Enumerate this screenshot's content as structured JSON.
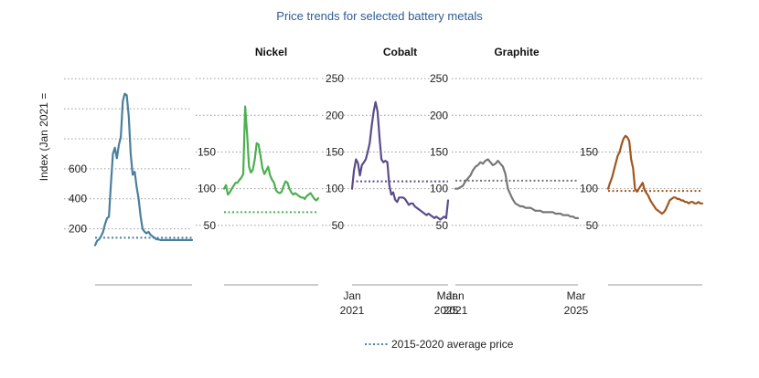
{
  "title": "Price trends for selected battery metals",
  "ylabel": "Index (Jan 2021 =",
  "legend": {
    "label": "2015-2020 average price"
  },
  "chart_data": [
    {
      "type": "line",
      "panel_title": "",
      "color": "#4a7f9e",
      "yticks": [
        200,
        400,
        600,
        800,
        1000,
        1200
      ],
      "ylim": [
        100,
        1250
      ],
      "tick_labels": [
        "200",
        "400",
        "600",
        "",
        "",
        ""
      ],
      "x_labels": [],
      "average_price": 140,
      "series": [
        {
          "x": [
            0,
            1,
            2,
            3,
            4,
            5,
            6,
            7,
            8,
            9,
            10,
            11,
            12,
            13,
            14,
            15,
            16,
            17,
            18,
            19,
            20,
            21,
            22,
            23,
            24,
            25,
            26,
            27,
            28,
            29,
            30,
            31,
            32,
            33,
            34,
            35,
            36,
            37,
            38,
            39,
            40,
            41,
            42,
            43,
            44,
            45,
            46,
            47,
            48,
            49
          ],
          "values": [
            90,
            120,
            130,
            150,
            180,
            230,
            270,
            280,
            500,
            700,
            740,
            670,
            760,
            810,
            1050,
            1100,
            1090,
            950,
            700,
            560,
            580,
            480,
            400,
            280,
            200,
            180,
            170,
            180,
            160,
            150,
            140,
            130,
            130,
            125,
            125,
            125,
            125,
            125,
            125,
            125,
            125,
            125,
            125,
            125,
            125,
            125,
            125,
            125,
            125,
            125
          ]
        }
      ]
    },
    {
      "type": "line",
      "panel_title": "Nickel",
      "color": "#4caf50",
      "yticks": [
        50,
        100,
        150,
        200,
        250
      ],
      "ylim": [
        25,
        260
      ],
      "tick_labels": [
        "50",
        "100",
        "150",
        "",
        ""
      ],
      "x_labels": [],
      "average_price": 68,
      "series": [
        {
          "x": [
            0,
            1,
            2,
            3,
            4,
            5,
            6,
            7,
            8,
            9,
            10,
            11,
            12,
            13,
            14,
            15,
            16,
            17,
            18,
            19,
            20,
            21,
            22,
            23,
            24,
            25,
            26,
            27,
            28,
            29,
            30,
            31,
            32,
            33,
            34,
            35,
            36,
            37,
            38,
            39,
            40,
            41,
            42,
            43,
            44,
            45,
            46,
            47,
            48,
            49
          ],
          "values": [
            100,
            105,
            92,
            95,
            100,
            104,
            108,
            108,
            112,
            115,
            120,
            212,
            175,
            130,
            122,
            126,
            140,
            162,
            160,
            145,
            128,
            120,
            125,
            130,
            118,
            112,
            108,
            98,
            95,
            94,
            96,
            104,
            110,
            108,
            100,
            95,
            92,
            94,
            92,
            90,
            88,
            88,
            86,
            90,
            92,
            94,
            90,
            86,
            84,
            87
          ]
        }
      ]
    },
    {
      "type": "line",
      "panel_title": "Cobalt",
      "color": "#5b4c8a",
      "yticks": [
        50,
        100,
        150,
        200,
        250
      ],
      "ylim": [
        25,
        260
      ],
      "tick_labels": [
        "50",
        "100",
        "150",
        "200",
        "250"
      ],
      "x_labels": [
        "Jan 2021",
        "Mar 2025"
      ],
      "average_price": 110,
      "series": [
        {
          "x": [
            0,
            1,
            2,
            3,
            4,
            5,
            6,
            7,
            8,
            9,
            10,
            11,
            12,
            13,
            14,
            15,
            16,
            17,
            18,
            19,
            20,
            21,
            22,
            23,
            24,
            25,
            26,
            27,
            28,
            29,
            30,
            31,
            32,
            33,
            34,
            35,
            36,
            37,
            38,
            39,
            40,
            41,
            42,
            43,
            44,
            45,
            46,
            47,
            48,
            49
          ],
          "values": [
            100,
            125,
            140,
            135,
            118,
            132,
            136,
            140,
            150,
            162,
            185,
            205,
            218,
            205,
            170,
            140,
            136,
            138,
            136,
            105,
            92,
            95,
            85,
            82,
            88,
            88,
            88,
            86,
            82,
            78,
            80,
            80,
            76,
            74,
            72,
            70,
            68,
            66,
            64,
            66,
            64,
            62,
            60,
            62,
            60,
            58,
            60,
            62,
            60,
            84
          ]
        }
      ]
    },
    {
      "type": "line",
      "panel_title": "Graphite",
      "color": "#777777",
      "yticks": [
        50,
        100,
        150,
        200,
        250
      ],
      "ylim": [
        25,
        260
      ],
      "tick_labels": [
        "50",
        "100",
        "150",
        "200",
        "250"
      ],
      "x_labels": [
        "Jan 2021",
        "Mar 2025"
      ],
      "average_price": 111,
      "series": [
        {
          "x": [
            0,
            1,
            2,
            3,
            4,
            5,
            6,
            7,
            8,
            9,
            10,
            11,
            12,
            13,
            14,
            15,
            16,
            17,
            18,
            19,
            20,
            21,
            22,
            23,
            24,
            25,
            26,
            27,
            28,
            29,
            30,
            31,
            32,
            33,
            34,
            35,
            36,
            37,
            38,
            39,
            40,
            41,
            42,
            43,
            44,
            45,
            46,
            47,
            48,
            49
          ],
          "values": [
            100,
            100,
            102,
            104,
            110,
            114,
            118,
            125,
            130,
            132,
            136,
            134,
            138,
            140,
            136,
            132,
            134,
            138,
            134,
            130,
            120,
            100,
            92,
            85,
            80,
            78,
            76,
            76,
            74,
            74,
            74,
            72,
            70,
            70,
            70,
            68,
            68,
            68,
            68,
            68,
            66,
            66,
            66,
            64,
            64,
            64,
            62,
            62,
            60,
            60
          ]
        }
      ]
    },
    {
      "type": "line",
      "panel_title": "",
      "color": "#a0561f",
      "yticks": [
        50,
        100,
        150,
        200,
        250
      ],
      "ylim": [
        25,
        260
      ],
      "tick_labels": [
        "50",
        "100",
        "150",
        "",
        ""
      ],
      "x_labels": [],
      "average_price": 97,
      "series": [
        {
          "x": [
            0,
            1,
            2,
            3,
            4,
            5,
            6,
            7,
            8,
            9,
            10,
            11,
            12,
            13,
            14,
            15,
            16,
            17,
            18,
            19,
            20,
            21,
            22,
            23,
            24,
            25,
            26,
            27,
            28,
            29,
            30,
            31,
            32,
            33,
            34,
            35,
            36,
            37,
            38,
            39,
            40,
            41,
            42,
            43,
            44,
            45,
            46,
            47,
            48,
            49
          ],
          "values": [
            100,
            108,
            115,
            125,
            135,
            145,
            150,
            160,
            168,
            172,
            170,
            165,
            140,
            128,
            100,
            96,
            100,
            104,
            108,
            98,
            94,
            90,
            84,
            80,
            76,
            72,
            70,
            68,
            66,
            68,
            72,
            78,
            84,
            86,
            88,
            88,
            86,
            86,
            84,
            84,
            82,
            82,
            80,
            82,
            82,
            80,
            80,
            82,
            80,
            80
          ]
        }
      ]
    }
  ]
}
